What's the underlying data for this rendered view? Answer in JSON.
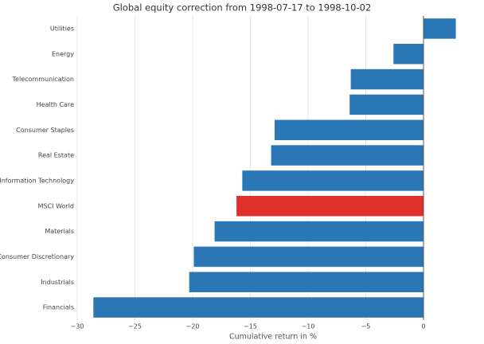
{
  "chart_data": {
    "type": "barh",
    "title": "Global equity correction from 1998-07-17 to 1998-10-02",
    "xlabel": "Cumulative return in %",
    "categories": [
      "Utilities",
      "Energy",
      "Telecommunication",
      "Health Care",
      "Consumer Staples",
      "Real Estate",
      "Information Technology",
      "MSCI World",
      "Materials",
      "Consumer Discretionary",
      "Industrials",
      "Financials"
    ],
    "values": [
      2.8,
      -2.6,
      -6.3,
      -6.4,
      -12.9,
      -13.2,
      -15.7,
      -16.2,
      -18.1,
      -19.9,
      -20.3,
      -28.6
    ],
    "colors": [
      "#2b77b5",
      "#2b77b5",
      "#2b77b5",
      "#2b77b5",
      "#2b77b5",
      "#2b77b5",
      "#2b77b5",
      "#e0302a",
      "#2b77b5",
      "#2b77b5",
      "#2b77b5",
      "#2b77b5"
    ],
    "xlim": [
      -30,
      4
    ],
    "xticks": [
      {
        "value": -30,
        "label": "−30"
      },
      {
        "value": -25,
        "label": "−25"
      },
      {
        "value": -20,
        "label": "−20"
      },
      {
        "value": -15,
        "label": "−15"
      },
      {
        "value": -10,
        "label": "−10"
      },
      {
        "value": -5,
        "label": "−5"
      },
      0
    ],
    "grid": true
  }
}
